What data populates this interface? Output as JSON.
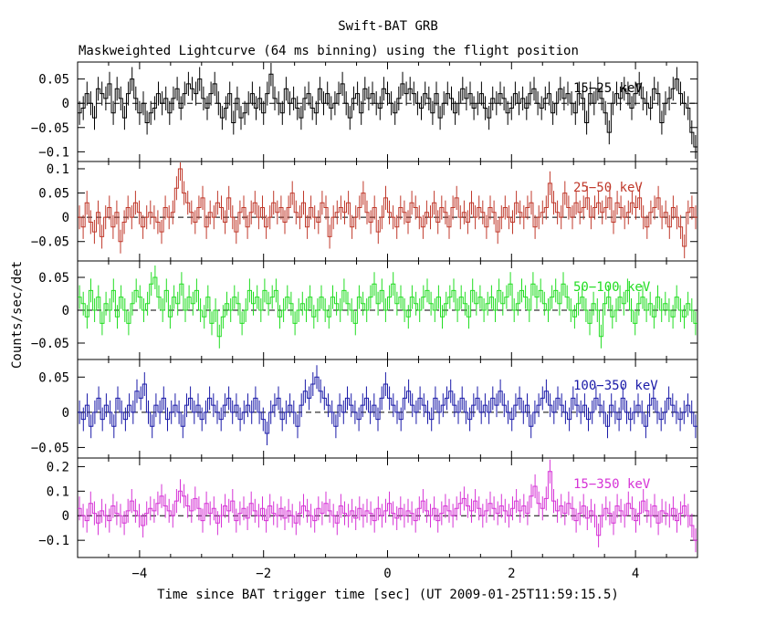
{
  "chart_data": {
    "type": "line",
    "title": "Swift-BAT GRB",
    "subtitle": "Maskweighted Lightcurve (64 ms binning) using the flight position",
    "xlabel": "Time since BAT trigger time [sec] (UT 2009-01-25T11:59:15.5)",
    "ylabel": "Counts/sec/det",
    "xlim": [
      -5,
      5
    ],
    "x_ticks": [
      -4,
      -2,
      0,
      2,
      4
    ],
    "x_tick_labels": [
      "−4",
      "−2",
      "0",
      "2",
      "4"
    ],
    "bin_width_sec": 0.064,
    "panels": [
      {
        "name": "15-25 keV",
        "label": "15−25 keV",
        "color": "#000000",
        "ylim": [
          -0.12,
          0.085
        ],
        "y_ticks": [
          0.05,
          0,
          -0.05,
          -0.1
        ],
        "y_tick_labels": [
          "0.05",
          "0",
          "−0.05",
          "−0.1"
        ],
        "values": [
          -0.02,
          -0.01,
          0.02,
          0.0,
          -0.03,
          0.03,
          0.02,
          0.01,
          0.04,
          -0.02,
          0.03,
          0.01,
          -0.03,
          0.02,
          0.05,
          0.01,
          -0.02,
          0.0,
          -0.04,
          -0.02,
          -0.01,
          0.02,
          0.0,
          0.01,
          -0.02,
          0.01,
          0.03,
          -0.01,
          0.02,
          0.04,
          0.03,
          0.02,
          0.05,
          0.01,
          -0.01,
          0.02,
          0.04,
          0.0,
          -0.03,
          -0.01,
          0.02,
          -0.04,
          0.01,
          -0.03,
          -0.02,
          0.0,
          0.02,
          -0.01,
          0.01,
          -0.02,
          0.02,
          0.06,
          0.01,
          0.0,
          -0.02,
          0.03,
          0.0,
          0.01,
          -0.01,
          -0.03,
          0.01,
          0.02,
          -0.01,
          -0.02,
          0.03,
          0.0,
          0.02,
          -0.01,
          0.0,
          0.02,
          0.04,
          0.0,
          -0.03,
          0.01,
          0.02,
          -0.02,
          0.03,
          0.01,
          0.02,
          0.0,
          -0.01,
          0.03,
          0.02,
          0.0,
          -0.02,
          0.01,
          0.04,
          0.02,
          0.03,
          0.02,
          0.0,
          -0.01,
          0.02,
          0.01,
          -0.02,
          0.02,
          -0.03,
          0.0,
          0.02,
          0.01,
          -0.02,
          0.0,
          0.03,
          0.01,
          0.02,
          -0.01,
          0.0,
          0.02,
          -0.01,
          -0.03,
          0.01,
          0.0,
          0.02,
          0.01,
          -0.02,
          -0.01,
          0.02,
          0.0,
          0.01,
          -0.01,
          0.02,
          0.03,
          0.0,
          -0.01,
          0.01,
          0.02,
          -0.02,
          0.0,
          0.03,
          0.01,
          0.02,
          0.0,
          -0.02,
          0.02,
          0.01,
          -0.04,
          0.02,
          0.0,
          0.03,
          0.01,
          -0.02,
          -0.06,
          0.0,
          0.02,
          0.01,
          0.03,
          0.02,
          -0.01,
          0.02,
          0.04,
          0.01,
          0.0,
          -0.01,
          0.03,
          0.02,
          -0.04,
          0.0,
          0.01,
          0.03,
          0.05,
          0.02,
          0.0,
          -0.01,
          -0.06,
          -0.09
        ]
      },
      {
        "name": "25-50 keV",
        "label": "25−50 keV",
        "color": "#c0392b",
        "ylim": [
          -0.09,
          0.115
        ],
        "y_ticks": [
          0.1,
          0.05,
          0,
          -0.05
        ],
        "y_tick_labels": [
          "0.1",
          "0.05",
          "0",
          "−0.05"
        ],
        "values": [
          0.0,
          -0.02,
          0.03,
          -0.01,
          -0.03,
          0.01,
          -0.04,
          0.0,
          0.02,
          -0.02,
          0.01,
          -0.05,
          -0.01,
          0.02,
          0.0,
          0.03,
          0.01,
          -0.02,
          0.0,
          0.01,
          0.0,
          -0.01,
          -0.03,
          0.02,
          0.0,
          0.01,
          0.06,
          0.1,
          0.05,
          0.03,
          0.01,
          -0.01,
          0.02,
          0.04,
          -0.02,
          0.01,
          0.0,
          0.03,
          0.02,
          -0.01,
          0.04,
          0.0,
          -0.03,
          0.01,
          0.02,
          -0.02,
          0.01,
          0.03,
          0.0,
          0.02,
          -0.02,
          0.0,
          0.03,
          0.01,
          0.02,
          -0.01,
          0.02,
          0.05,
          0.01,
          0.0,
          0.03,
          -0.02,
          0.02,
          0.0,
          -0.01,
          0.03,
          0.02,
          -0.04,
          0.0,
          0.01,
          0.02,
          0.01,
          0.03,
          -0.02,
          0.0,
          0.02,
          0.05,
          0.01,
          -0.01,
          0.02,
          -0.03,
          0.0,
          0.04,
          0.01,
          0.0,
          -0.02,
          0.02,
          0.01,
          -0.01,
          0.03,
          0.02,
          0.0,
          -0.02,
          0.01,
          0.0,
          0.03,
          -0.01,
          0.02,
          0.01,
          -0.02,
          0.02,
          0.04,
          0.0,
          0.01,
          -0.01,
          0.03,
          0.0,
          0.02,
          0.01,
          -0.02,
          0.02,
          0.01,
          -0.03,
          0.0,
          0.02,
          0.0,
          -0.01,
          0.03,
          0.01,
          0.0,
          0.02,
          0.03,
          -0.02,
          0.0,
          0.01,
          0.02,
          0.07,
          0.03,
          0.01,
          0.0,
          0.05,
          0.02,
          0.0,
          0.03,
          0.01,
          0.02,
          0.04,
          0.0,
          0.02,
          0.03,
          0.01,
          0.02,
          0.04,
          -0.01,
          0.03,
          0.02,
          0.0,
          0.01,
          0.03,
          0.02,
          0.04,
          0.0,
          -0.02,
          0.01,
          0.02,
          0.04,
          0.0,
          0.01,
          -0.02,
          0.02,
          0.0,
          -0.02,
          -0.06,
          0.01,
          0.02,
          0.0
        ]
      },
      {
        "name": "50-100 keV",
        "label": "50−100 keV",
        "color": "#22dd22",
        "ylim": [
          -0.075,
          0.075
        ],
        "y_ticks": [
          0.05,
          0,
          -0.05
        ],
        "y_tick_labels": [
          "0.05",
          "0",
          "−0.05"
        ],
        "values": [
          0.02,
          0.01,
          -0.01,
          0.03,
          0.0,
          0.02,
          -0.02,
          0.01,
          0.0,
          0.03,
          -0.01,
          0.02,
          0.0,
          -0.02,
          0.01,
          0.03,
          0.02,
          0.0,
          0.01,
          0.04,
          0.05,
          0.02,
          0.0,
          0.03,
          -0.01,
          0.02,
          0.01,
          0.04,
          0.0,
          0.02,
          0.01,
          0.03,
          0.0,
          -0.01,
          0.02,
          -0.02,
          0.0,
          -0.04,
          -0.01,
          0.01,
          0.0,
          0.02,
          0.01,
          -0.02,
          0.0,
          0.03,
          0.01,
          0.02,
          0.0,
          0.03,
          0.01,
          0.02,
          0.03,
          -0.01,
          0.0,
          0.02,
          0.01,
          -0.02,
          0.0,
          0.01,
          0.0,
          0.02,
          -0.01,
          0.0,
          0.02,
          0.0,
          -0.01,
          0.02,
          0.01,
          0.0,
          0.03,
          0.01,
          0.0,
          -0.02,
          0.02,
          0.01,
          0.0,
          0.02,
          0.04,
          0.01,
          0.03,
          0.0,
          0.02,
          0.04,
          0.01,
          0.02,
          0.0,
          -0.01,
          0.02,
          0.01,
          0.0,
          0.02,
          0.03,
          0.01,
          0.0,
          0.02,
          -0.01,
          0.01,
          0.02,
          0.03,
          0.0,
          0.02,
          0.01,
          -0.01,
          0.03,
          0.01,
          0.02,
          0.0,
          0.01,
          0.02,
          0.0,
          0.03,
          0.01,
          0.02,
          0.04,
          0.0,
          0.01,
          0.03,
          0.02,
          0.0,
          0.04,
          0.02,
          0.03,
          0.01,
          0.0,
          0.02,
          0.03,
          0.01,
          0.04,
          0.02,
          0.0,
          -0.01,
          0.01,
          0.02,
          0.0,
          -0.02,
          0.01,
          0.0,
          -0.04,
          0.01,
          0.02,
          -0.01,
          0.0,
          0.02,
          0.01,
          0.03,
          0.0,
          -0.02,
          0.01,
          0.02,
          0.0,
          0.01,
          -0.01,
          0.02,
          0.0,
          0.01,
          0.0,
          -0.01,
          0.02,
          0.0,
          -0.01,
          0.01,
          0.0,
          -0.02
        ]
      },
      {
        "name": "100-350 keV",
        "label": "100−350 keV",
        "color": "#1a1aa8",
        "ylim": [
          -0.065,
          0.075
        ],
        "y_ticks": [
          0.05,
          0,
          -0.05
        ],
        "y_tick_labels": [
          "0.05",
          "0",
          "−0.05"
        ],
        "values": [
          0.0,
          -0.01,
          0.01,
          -0.02,
          0.0,
          0.02,
          -0.01,
          0.01,
          0.0,
          -0.02,
          0.02,
          0.0,
          -0.01,
          0.01,
          0.0,
          0.03,
          0.02,
          0.04,
          0.0,
          -0.02,
          0.01,
          0.0,
          0.02,
          -0.01,
          0.0,
          0.01,
          0.0,
          -0.02,
          0.01,
          0.02,
          0.0,
          0.01,
          -0.01,
          0.0,
          0.02,
          0.01,
          0.0,
          -0.01,
          0.01,
          0.02,
          0.0,
          0.01,
          -0.01,
          0.0,
          0.01,
          0.0,
          0.02,
          0.0,
          -0.01,
          -0.03,
          0.0,
          0.01,
          0.02,
          -0.01,
          0.0,
          0.01,
          0.0,
          -0.02,
          0.01,
          0.03,
          0.02,
          0.04,
          0.05,
          0.03,
          0.02,
          0.01,
          0.0,
          -0.02,
          0.01,
          0.0,
          0.02,
          0.01,
          0.0,
          -0.01,
          0.01,
          0.02,
          0.0,
          0.01,
          -0.01,
          0.02,
          0.04,
          0.02,
          0.01,
          0.0,
          -0.01,
          0.02,
          0.03,
          0.01,
          0.0,
          0.02,
          0.01,
          0.0,
          -0.01,
          0.02,
          0.0,
          0.01,
          0.02,
          0.03,
          0.01,
          0.0,
          0.02,
          0.0,
          -0.01,
          0.01,
          0.02,
          0.0,
          0.01,
          0.0,
          0.02,
          0.01,
          0.03,
          0.01,
          0.0,
          -0.01,
          0.01,
          0.02,
          0.0,
          0.01,
          -0.02,
          0.0,
          0.01,
          0.02,
          0.03,
          0.01,
          0.0,
          0.02,
          0.01,
          0.0,
          -0.01,
          0.02,
          0.01,
          0.0,
          0.01,
          -0.01,
          0.0,
          0.02,
          0.01,
          0.0,
          -0.02,
          0.01,
          0.0,
          -0.01,
          0.02,
          0.0,
          -0.01,
          0.0,
          0.01,
          0.0,
          -0.02,
          0.01,
          0.02,
          0.0,
          -0.01,
          0.0,
          0.02,
          0.01,
          0.0,
          -0.01,
          0.0,
          0.01,
          0.0,
          -0.02
        ]
      },
      {
        "name": "15-350 keV",
        "label": "15−350 keV",
        "color": "#d633d6",
        "ylim": [
          -0.17,
          0.235
        ],
        "y_ticks": [
          0.2,
          0.1,
          0,
          -0.1
        ],
        "y_tick_labels": [
          "0.2",
          "0.1",
          "0",
          "−0.1"
        ],
        "values": [
          0.03,
          0.0,
          -0.02,
          0.05,
          0.01,
          -0.03,
          0.02,
          0.0,
          -0.02,
          0.04,
          0.01,
          0.0,
          -0.03,
          0.02,
          0.06,
          0.02,
          0.0,
          -0.04,
          0.01,
          0.03,
          0.02,
          0.05,
          0.08,
          0.04,
          0.02,
          0.0,
          0.06,
          0.1,
          0.08,
          0.04,
          0.02,
          0.07,
          0.03,
          -0.02,
          0.05,
          0.01,
          0.03,
          -0.03,
          0.0,
          0.04,
          0.02,
          0.06,
          -0.02,
          0.01,
          0.03,
          -0.01,
          0.05,
          0.02,
          0.0,
          0.03,
          -0.02,
          0.04,
          0.01,
          0.0,
          0.03,
          -0.01,
          0.02,
          0.0,
          -0.03,
          0.01,
          0.04,
          0.02,
          0.0,
          -0.02,
          0.03,
          0.01,
          0.05,
          0.02,
          0.0,
          -0.03,
          0.04,
          0.01,
          0.0,
          0.02,
          -0.01,
          0.03,
          0.0,
          0.02,
          0.01,
          -0.02,
          0.03,
          0.0,
          0.02,
          0.05,
          0.01,
          -0.01,
          0.03,
          0.0,
          0.02,
          0.01,
          -0.02,
          0.03,
          0.06,
          0.02,
          0.0,
          0.03,
          -0.02,
          0.01,
          0.04,
          0.02,
          0.0,
          0.03,
          0.05,
          0.07,
          0.04,
          0.02,
          0.06,
          0.03,
          0.0,
          0.02,
          0.05,
          0.03,
          0.01,
          0.04,
          0.02,
          0.0,
          0.03,
          0.06,
          0.02,
          0.04,
          0.01,
          0.08,
          0.12,
          0.05,
          0.03,
          0.07,
          0.18,
          0.06,
          0.02,
          0.04,
          0.01,
          0.05,
          0.03,
          -0.02,
          0.01,
          0.04,
          -0.01,
          0.02,
          0.0,
          -0.08,
          0.0,
          0.03,
          0.01,
          -0.03,
          0.04,
          0.02,
          0.0,
          0.05,
          0.03,
          -0.02,
          0.01,
          0.06,
          0.02,
          0.0,
          0.04,
          -0.03,
          0.02,
          0.01,
          0.0,
          0.03,
          -0.02,
          0.01,
          0.04,
          0.0,
          -0.04,
          -0.1
        ]
      }
    ],
    "grid": false,
    "legend": "none"
  }
}
